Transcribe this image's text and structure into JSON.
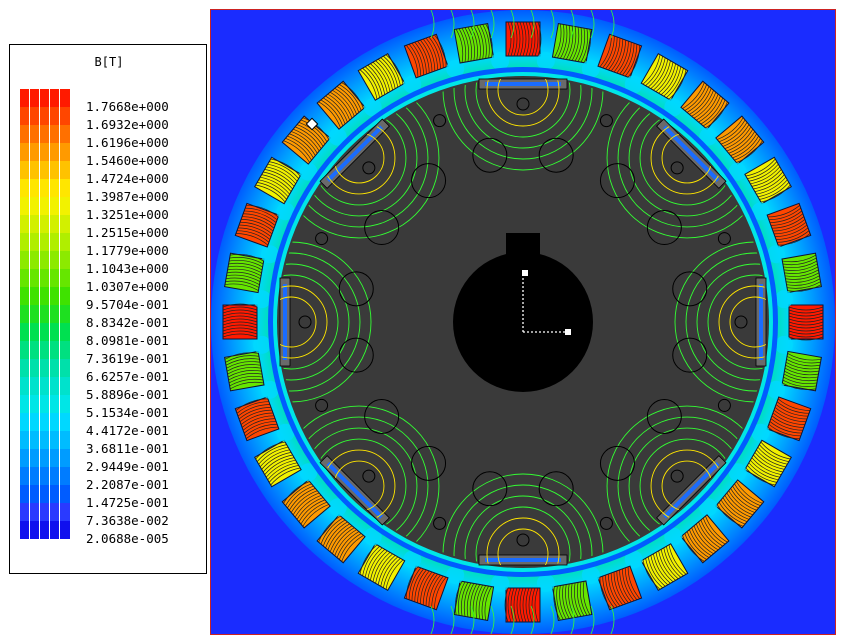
{
  "legend": {
    "title": "B[T]",
    "levels": [
      {
        "value": "1.7668e+000",
        "color": "#ff1a00"
      },
      {
        "value": "1.6932e+000",
        "color": "#ff4600"
      },
      {
        "value": "1.6196e+000",
        "color": "#ff7000"
      },
      {
        "value": "1.5460e+000",
        "color": "#ff9a00"
      },
      {
        "value": "1.4724e+000",
        "color": "#ffc200"
      },
      {
        "value": "1.3987e+000",
        "color": "#ffe600"
      },
      {
        "value": "1.3251e+000",
        "color": "#f2f200"
      },
      {
        "value": "1.2515e+000",
        "color": "#d2f000"
      },
      {
        "value": "1.1779e+000",
        "color": "#b0ee00"
      },
      {
        "value": "1.1043e+000",
        "color": "#8cea00"
      },
      {
        "value": "1.0307e+000",
        "color": "#66e600"
      },
      {
        "value": "9.5704e-001",
        "color": "#3fe200"
      },
      {
        "value": "8.8342e-001",
        "color": "#1ee020"
      },
      {
        "value": "8.0981e-001",
        "color": "#00e050"
      },
      {
        "value": "7.3619e-001",
        "color": "#00e080"
      },
      {
        "value": "6.6257e-001",
        "color": "#00e0aa"
      },
      {
        "value": "5.8896e-001",
        "color": "#00e2cc"
      },
      {
        "value": "5.1534e-001",
        "color": "#00e6e6"
      },
      {
        "value": "4.4172e-001",
        "color": "#00d8ff"
      },
      {
        "value": "3.6811e-001",
        "color": "#00bcff"
      },
      {
        "value": "2.9449e-001",
        "color": "#009cff"
      },
      {
        "value": "2.2087e-001",
        "color": "#007cff"
      },
      {
        "value": "1.4725e-001",
        "color": "#005cff"
      },
      {
        "value": "7.3638e-002",
        "color": "#2a3aff"
      },
      {
        "value": "2.0688e-005",
        "color": "#1010ee"
      }
    ]
  },
  "field_plot": {
    "background_color": "#1a2cff",
    "stator_slot_count": 36,
    "rotor_pole_count": 8,
    "rotor_color": "#3a3a3a",
    "shaft_color": "#000000",
    "flux_line_color": "#33ff33"
  }
}
